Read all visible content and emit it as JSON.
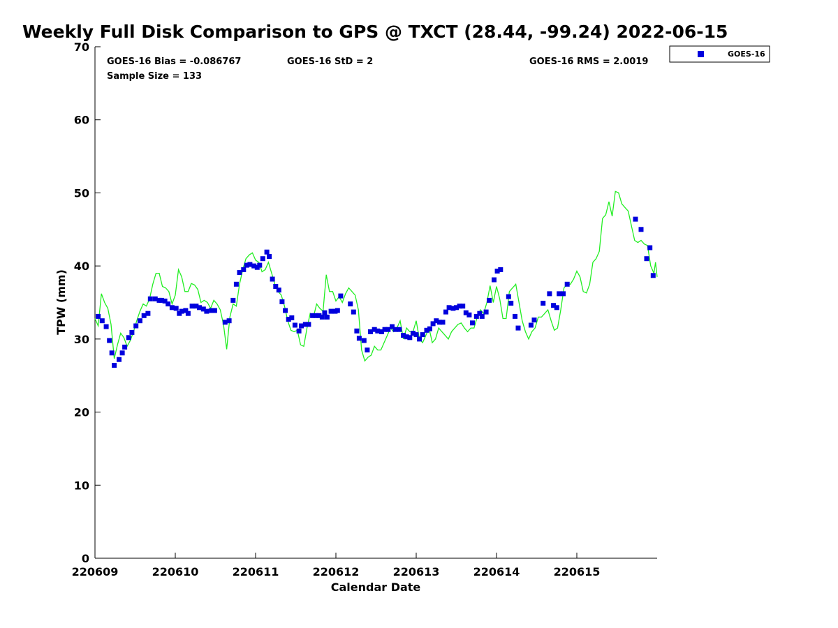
{
  "chart_data": {
    "type": "scatter",
    "title": "Weekly Full Disk Comparison to GPS @ TXCT (28.44, -99.24) 2022-06-15",
    "xlabel": "Calendar Date",
    "ylabel": "TPW (mm)",
    "xlim": [
      0,
      7
    ],
    "ylim": [
      0,
      70
    ],
    "x_ticks": [
      0,
      1,
      2,
      3,
      4,
      5,
      6
    ],
    "x_tick_labels": [
      "220609",
      "220610",
      "220611",
      "220612",
      "220613",
      "220614",
      "220615"
    ],
    "y_ticks": [
      0,
      10,
      20,
      30,
      40,
      50,
      60,
      70
    ],
    "y_tick_labels": [
      "0",
      "10",
      "20",
      "30",
      "40",
      "50",
      "60",
      "70"
    ],
    "grid": false,
    "legend_position": "top-right",
    "stats": {
      "bias": "GOES-16 Bias = -0.086767",
      "std": "GOES-16 StD = 2",
      "rms": "GOES-16 RMS = 2.0019",
      "sample_size": "Sample Size = 133"
    },
    "colors": {
      "goes": "#0000dd",
      "gps": "#22ee22"
    },
    "series": [
      {
        "name": "GOES-16",
        "marker": "square",
        "points": [
          [
            0.04,
            33.1
          ],
          [
            0.09,
            32.5
          ],
          [
            0.14,
            31.7
          ],
          [
            0.18,
            29.8
          ],
          [
            0.21,
            28.1
          ],
          [
            0.24,
            26.4
          ],
          [
            0.3,
            27.2
          ],
          [
            0.34,
            28.1
          ],
          [
            0.37,
            28.9
          ],
          [
            0.42,
            30.2
          ],
          [
            0.46,
            30.9
          ],
          [
            0.51,
            31.8
          ],
          [
            0.56,
            32.5
          ],
          [
            0.61,
            33.2
          ],
          [
            0.66,
            33.5
          ],
          [
            0.69,
            35.5
          ],
          [
            0.75,
            35.5
          ],
          [
            0.8,
            35.3
          ],
          [
            0.83,
            35.3
          ],
          [
            0.87,
            35.2
          ],
          [
            0.91,
            34.8
          ],
          [
            0.96,
            34.3
          ],
          [
            1.01,
            34.2
          ],
          [
            1.05,
            33.5
          ],
          [
            1.08,
            33.8
          ],
          [
            1.13,
            33.9
          ],
          [
            1.16,
            33.5
          ],
          [
            1.21,
            34.5
          ],
          [
            1.26,
            34.5
          ],
          [
            1.3,
            34.3
          ],
          [
            1.35,
            34.1
          ],
          [
            1.39,
            33.8
          ],
          [
            1.45,
            33.9
          ],
          [
            1.49,
            33.9
          ],
          [
            1.62,
            32.3
          ],
          [
            1.67,
            32.5
          ],
          [
            1.72,
            35.3
          ],
          [
            1.76,
            37.5
          ],
          [
            1.8,
            39.1
          ],
          [
            1.85,
            39.5
          ],
          [
            1.89,
            40.1
          ],
          [
            1.93,
            40.2
          ],
          [
            1.98,
            40.0
          ],
          [
            2.02,
            39.8
          ],
          [
            2.05,
            40.1
          ],
          [
            2.09,
            41.0
          ],
          [
            2.14,
            41.9
          ],
          [
            2.17,
            41.3
          ],
          [
            2.21,
            38.2
          ],
          [
            2.25,
            37.2
          ],
          [
            2.29,
            36.7
          ],
          [
            2.33,
            35.1
          ],
          [
            2.37,
            33.9
          ],
          [
            2.41,
            32.7
          ],
          [
            2.45,
            32.9
          ],
          [
            2.49,
            31.9
          ],
          [
            2.54,
            31.1
          ],
          [
            2.57,
            31.8
          ],
          [
            2.62,
            32.0
          ],
          [
            2.66,
            32.0
          ],
          [
            2.71,
            33.2
          ],
          [
            2.75,
            33.2
          ],
          [
            2.79,
            33.2
          ],
          [
            2.83,
            33.0
          ],
          [
            2.86,
            33.6
          ],
          [
            2.89,
            33.0
          ],
          [
            2.94,
            33.8
          ],
          [
            2.99,
            33.8
          ],
          [
            3.02,
            33.9
          ],
          [
            3.06,
            35.9
          ],
          [
            3.18,
            34.8
          ],
          [
            3.22,
            33.7
          ],
          [
            3.26,
            31.1
          ],
          [
            3.29,
            30.1
          ],
          [
            3.35,
            29.8
          ],
          [
            3.39,
            28.5
          ],
          [
            3.43,
            31.0
          ],
          [
            3.48,
            31.3
          ],
          [
            3.52,
            31.1
          ],
          [
            3.57,
            31.0
          ],
          [
            3.61,
            31.3
          ],
          [
            3.65,
            31.3
          ],
          [
            3.7,
            31.7
          ],
          [
            3.74,
            31.3
          ],
          [
            3.79,
            31.3
          ],
          [
            3.84,
            30.5
          ],
          [
            3.88,
            30.3
          ],
          [
            3.92,
            30.2
          ],
          [
            3.96,
            30.8
          ],
          [
            4.0,
            30.6
          ],
          [
            4.04,
            30.0
          ],
          [
            4.08,
            30.6
          ],
          [
            4.13,
            31.2
          ],
          [
            4.17,
            31.4
          ],
          [
            4.21,
            32.1
          ],
          [
            4.25,
            32.5
          ],
          [
            4.29,
            32.3
          ],
          [
            4.33,
            32.3
          ],
          [
            4.37,
            33.7
          ],
          [
            4.41,
            34.3
          ],
          [
            4.46,
            34.2
          ],
          [
            4.5,
            34.3
          ],
          [
            4.54,
            34.5
          ],
          [
            4.58,
            34.5
          ],
          [
            4.62,
            33.6
          ],
          [
            4.66,
            33.3
          ],
          [
            4.7,
            32.2
          ],
          [
            4.75,
            33.1
          ],
          [
            4.79,
            33.5
          ],
          [
            4.82,
            33.1
          ],
          [
            4.87,
            33.7
          ],
          [
            4.91,
            35.3
          ],
          [
            4.97,
            38.1
          ],
          [
            5.01,
            39.3
          ],
          [
            5.05,
            39.5
          ],
          [
            5.15,
            35.8
          ],
          [
            5.18,
            34.9
          ],
          [
            5.23,
            33.1
          ],
          [
            5.27,
            31.5
          ],
          [
            5.43,
            31.9
          ],
          [
            5.47,
            32.6
          ],
          [
            5.58,
            34.9
          ],
          [
            5.66,
            36.2
          ],
          [
            5.71,
            34.6
          ],
          [
            5.75,
            34.3
          ],
          [
            5.78,
            36.2
          ],
          [
            5.83,
            36.2
          ],
          [
            5.88,
            37.5
          ],
          [
            6.73,
            46.4
          ],
          [
            6.8,
            45.0
          ],
          [
            6.87,
            41.0
          ],
          [
            6.91,
            42.5
          ],
          [
            6.95,
            38.7
          ]
        ]
      },
      {
        "name": "",
        "marker": "line",
        "points": [
          [
            0.0,
            32.8
          ],
          [
            0.04,
            31.8
          ],
          [
            0.08,
            36.2
          ],
          [
            0.12,
            35.0
          ],
          [
            0.16,
            34.2
          ],
          [
            0.2,
            32.0
          ],
          [
            0.24,
            27.3
          ],
          [
            0.28,
            29.2
          ],
          [
            0.32,
            30.8
          ],
          [
            0.36,
            30.2
          ],
          [
            0.4,
            29.0
          ],
          [
            0.44,
            29.8
          ],
          [
            0.48,
            31.0
          ],
          [
            0.52,
            32.5
          ],
          [
            0.56,
            33.8
          ],
          [
            0.6,
            34.8
          ],
          [
            0.64,
            34.5
          ],
          [
            0.68,
            35.5
          ],
          [
            0.72,
            37.5
          ],
          [
            0.76,
            39.0
          ],
          [
            0.8,
            39.0
          ],
          [
            0.84,
            37.2
          ],
          [
            0.88,
            37.0
          ],
          [
            0.92,
            36.5
          ],
          [
            0.96,
            34.8
          ],
          [
            1.0,
            36.0
          ],
          [
            1.04,
            39.5
          ],
          [
            1.08,
            38.5
          ],
          [
            1.12,
            36.5
          ],
          [
            1.16,
            36.5
          ],
          [
            1.2,
            37.6
          ],
          [
            1.24,
            37.4
          ],
          [
            1.28,
            36.8
          ],
          [
            1.32,
            35.0
          ],
          [
            1.36,
            35.3
          ],
          [
            1.4,
            35.0
          ],
          [
            1.44,
            34.2
          ],
          [
            1.48,
            35.3
          ],
          [
            1.52,
            34.8
          ],
          [
            1.56,
            34.0
          ],
          [
            1.6,
            32.0
          ],
          [
            1.64,
            28.6
          ],
          [
            1.68,
            33.0
          ],
          [
            1.72,
            34.8
          ],
          [
            1.76,
            34.5
          ],
          [
            1.8,
            37.5
          ],
          [
            1.84,
            39.5
          ],
          [
            1.88,
            41.0
          ],
          [
            1.92,
            41.5
          ],
          [
            1.96,
            41.8
          ],
          [
            2.0,
            40.8
          ],
          [
            2.04,
            40.5
          ],
          [
            2.08,
            39.2
          ],
          [
            2.12,
            39.5
          ],
          [
            2.16,
            40.5
          ],
          [
            2.2,
            39.0
          ],
          [
            2.24,
            37.5
          ],
          [
            2.28,
            36.5
          ],
          [
            2.32,
            36.0
          ],
          [
            2.36,
            34.5
          ],
          [
            2.4,
            32.5
          ],
          [
            2.44,
            31.2
          ],
          [
            2.48,
            31.0
          ],
          [
            2.52,
            31.2
          ],
          [
            2.56,
            29.2
          ],
          [
            2.6,
            29.0
          ],
          [
            2.64,
            31.5
          ],
          [
            2.68,
            33.5
          ],
          [
            2.72,
            33.0
          ],
          [
            2.76,
            34.8
          ],
          [
            2.8,
            34.2
          ],
          [
            2.84,
            33.8
          ],
          [
            2.88,
            38.8
          ],
          [
            2.92,
            36.5
          ],
          [
            2.96,
            36.5
          ],
          [
            3.0,
            35.2
          ],
          [
            3.04,
            35.8
          ],
          [
            3.08,
            35.0
          ],
          [
            3.12,
            36.2
          ],
          [
            3.16,
            37.0
          ],
          [
            3.2,
            36.5
          ],
          [
            3.24,
            36.0
          ],
          [
            3.28,
            34.0
          ],
          [
            3.32,
            28.5
          ],
          [
            3.36,
            27.0
          ],
          [
            3.4,
            27.5
          ],
          [
            3.44,
            27.8
          ],
          [
            3.48,
            29.0
          ],
          [
            3.52,
            28.5
          ],
          [
            3.56,
            28.5
          ],
          [
            3.6,
            29.5
          ],
          [
            3.64,
            30.5
          ],
          [
            3.68,
            31.5
          ],
          [
            3.72,
            31.0
          ],
          [
            3.76,
            31.5
          ],
          [
            3.8,
            32.5
          ],
          [
            3.84,
            30.0
          ],
          [
            3.88,
            31.5
          ],
          [
            3.92,
            31.0
          ],
          [
            3.96,
            31.0
          ],
          [
            4.0,
            32.5
          ],
          [
            4.04,
            30.0
          ],
          [
            4.08,
            29.5
          ],
          [
            4.12,
            30.5
          ],
          [
            4.16,
            31.5
          ],
          [
            4.2,
            29.5
          ],
          [
            4.24,
            30.0
          ],
          [
            4.28,
            31.5
          ],
          [
            4.32,
            31.0
          ],
          [
            4.36,
            30.5
          ],
          [
            4.4,
            30.0
          ],
          [
            4.44,
            31.0
          ],
          [
            4.48,
            31.5
          ],
          [
            4.52,
            32.0
          ],
          [
            4.56,
            32.2
          ],
          [
            4.6,
            31.5
          ],
          [
            4.64,
            31.0
          ],
          [
            4.68,
            31.5
          ],
          [
            4.72,
            31.5
          ],
          [
            4.76,
            33.0
          ],
          [
            4.8,
            34.0
          ],
          [
            4.84,
            33.5
          ],
          [
            4.88,
            35.0
          ],
          [
            4.92,
            37.3
          ],
          [
            4.96,
            35.0
          ],
          [
            5.0,
            37.2
          ],
          [
            5.04,
            35.5
          ],
          [
            5.08,
            32.8
          ],
          [
            5.12,
            32.8
          ],
          [
            5.16,
            36.5
          ],
          [
            5.2,
            37.0
          ],
          [
            5.24,
            37.5
          ],
          [
            5.28,
            35.0
          ],
          [
            5.32,
            32.5
          ],
          [
            5.36,
            31.0
          ],
          [
            5.4,
            30.0
          ],
          [
            5.44,
            31.0
          ],
          [
            5.48,
            31.5
          ],
          [
            5.52,
            33.0
          ],
          [
            5.56,
            33.0
          ],
          [
            5.6,
            33.5
          ],
          [
            5.64,
            34.0
          ],
          [
            5.68,
            32.5
          ],
          [
            5.72,
            31.2
          ],
          [
            5.76,
            31.5
          ],
          [
            5.8,
            34.0
          ],
          [
            5.84,
            37.0
          ],
          [
            5.88,
            37.5
          ],
          [
            5.92,
            37.5
          ],
          [
            5.96,
            38.2
          ],
          [
            6.0,
            39.3
          ],
          [
            6.04,
            38.5
          ],
          [
            6.08,
            36.5
          ],
          [
            6.12,
            36.3
          ],
          [
            6.16,
            37.5
          ],
          [
            6.2,
            40.5
          ],
          [
            6.24,
            41.0
          ],
          [
            6.28,
            42.0
          ],
          [
            6.32,
            46.5
          ],
          [
            6.36,
            47.0
          ],
          [
            6.4,
            48.8
          ],
          [
            6.44,
            46.8
          ],
          [
            6.48,
            50.2
          ],
          [
            6.52,
            50.0
          ],
          [
            6.56,
            48.5
          ],
          [
            6.6,
            48.0
          ],
          [
            6.64,
            47.5
          ],
          [
            6.68,
            45.5
          ],
          [
            6.72,
            43.5
          ],
          [
            6.76,
            43.2
          ],
          [
            6.8,
            43.5
          ],
          [
            6.84,
            43.0
          ],
          [
            6.88,
            42.8
          ],
          [
            6.92,
            40.0
          ],
          [
            6.96,
            39.0
          ],
          [
            6.98,
            40.5
          ],
          [
            7.0,
            38.5
          ]
        ]
      }
    ]
  }
}
